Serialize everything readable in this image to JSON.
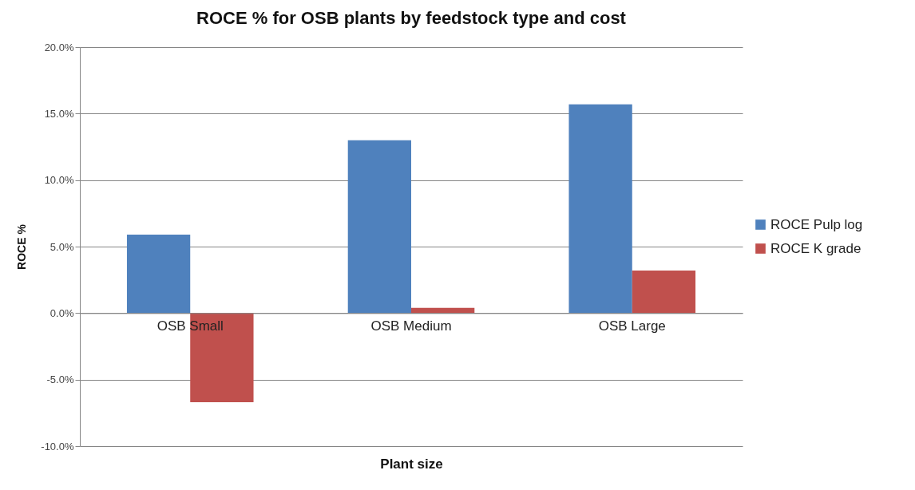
{
  "chart_data": {
    "type": "bar",
    "title": "ROCE % for OSB plants by feedstock type and cost",
    "xlabel": "Plant size",
    "ylabel": "ROCE %",
    "categories": [
      "OSB Small",
      "OSB Medium",
      "OSB Large"
    ],
    "series": [
      {
        "name": "ROCE Pulp log",
        "color": "#4f81bd",
        "values": [
          5.9,
          13.0,
          15.7
        ]
      },
      {
        "name": "ROCE K grade",
        "color": "#c0504d",
        "values": [
          -6.7,
          0.4,
          3.2
        ]
      }
    ],
    "ylim": [
      -10,
      20
    ],
    "yticks": [
      {
        "value": -10,
        "label": "-10.0%"
      },
      {
        "value": -5,
        "label": "-5.0%"
      },
      {
        "value": 0,
        "label": "0.0%"
      },
      {
        "value": 5,
        "label": "5.0%"
      },
      {
        "value": 10,
        "label": "10.0%"
      },
      {
        "value": 15,
        "label": "15.0%"
      },
      {
        "value": 20,
        "label": "20.0%"
      }
    ],
    "grid": "y",
    "legend": "right"
  }
}
